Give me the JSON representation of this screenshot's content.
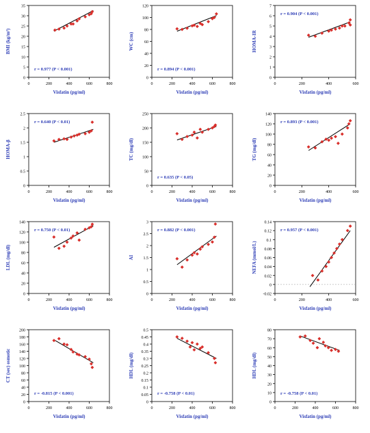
{
  "chart_data": [
    {
      "type": "scatter",
      "xlabel": "Visfatin (pg/ml)",
      "ylabel": "BMI (kg/m²)",
      "ylim": [
        0,
        35
      ],
      "yticks": [
        0,
        5,
        10,
        15,
        20,
        25,
        30,
        35
      ],
      "xlim": [
        0,
        800
      ],
      "xticks": [
        0,
        200,
        400,
        600,
        800
      ],
      "annotation": "r = 0.977 (P < 0.001)",
      "annotation_pos": "bottom-left",
      "points": [
        [
          260,
          23
        ],
        [
          300,
          23.5
        ],
        [
          350,
          24
        ],
        [
          380,
          25
        ],
        [
          420,
          26
        ],
        [
          440,
          26
        ],
        [
          480,
          27.5
        ],
        [
          500,
          28.5
        ],
        [
          560,
          29.5
        ],
        [
          600,
          30.5
        ],
        [
          620,
          31
        ],
        [
          630,
          32
        ]
      ],
      "fit": [
        [
          250,
          22.5
        ],
        [
          640,
          32.5
        ]
      ]
    },
    {
      "type": "scatter",
      "xlabel": "Visfatin (pg/ml)",
      "ylabel": "WC (cm)",
      "ylim": [
        0,
        120
      ],
      "yticks": [
        0,
        20,
        40,
        60,
        80,
        100,
        120
      ],
      "xlim": [
        0,
        800
      ],
      "xticks": [
        0,
        200,
        400,
        600,
        800
      ],
      "annotation": "r = 0.894 (P < 0.001)",
      "annotation_pos": "bottom-left",
      "points": [
        [
          250,
          81
        ],
        [
          300,
          80
        ],
        [
          350,
          82
        ],
        [
          400,
          86
        ],
        [
          420,
          87
        ],
        [
          450,
          85
        ],
        [
          480,
          90
        ],
        [
          500,
          88
        ],
        [
          560,
          93
        ],
        [
          600,
          98
        ],
        [
          620,
          100
        ],
        [
          640,
          106
        ]
      ],
      "fit": [
        [
          250,
          77
        ],
        [
          640,
          103
        ]
      ]
    },
    {
      "type": "scatter",
      "xlabel": "Visfatin (pg/ml)",
      "ylabel": "HOMA-IR",
      "ylim": [
        0,
        7
      ],
      "yticks": [
        0,
        1,
        2,
        3,
        4,
        5,
        6,
        7
      ],
      "xlim": [
        0,
        600
      ],
      "xticks": [
        0,
        200,
        400,
        600
      ],
      "annotation": "r = 0.904 (P < 0.001)",
      "annotation_pos": "top-left",
      "points": [
        [
          250,
          4.1
        ],
        [
          300,
          4.0
        ],
        [
          350,
          4.3
        ],
        [
          400,
          4.5
        ],
        [
          420,
          4.6
        ],
        [
          450,
          4.7
        ],
        [
          480,
          4.8
        ],
        [
          500,
          5.0
        ],
        [
          520,
          5.0
        ],
        [
          550,
          5.3
        ],
        [
          560,
          5.6
        ],
        [
          560,
          5.1
        ]
      ],
      "fit": [
        [
          250,
          3.9
        ],
        [
          560,
          5.4
        ]
      ]
    },
    {
      "type": "scatter",
      "xlabel": "Visfatin (pg/ml)",
      "ylabel": "HOMA-β",
      "ylim": [
        0,
        2.5
      ],
      "yticks": [
        0,
        0.5,
        1,
        1.5,
        2,
        2.5
      ],
      "xlim": [
        0,
        800
      ],
      "xticks": [
        0,
        200,
        400,
        600,
        800
      ],
      "annotation": "r = 0.640 (P < 0.01)",
      "annotation_pos": "top-left",
      "points": [
        [
          250,
          1.55
        ],
        [
          300,
          1.6
        ],
        [
          350,
          1.62
        ],
        [
          380,
          1.6
        ],
        [
          420,
          1.68
        ],
        [
          450,
          1.72
        ],
        [
          480,
          1.75
        ],
        [
          500,
          1.78
        ],
        [
          560,
          1.8
        ],
        [
          600,
          1.85
        ],
        [
          620,
          1.9
        ],
        [
          630,
          2.2
        ]
      ],
      "fit": [
        [
          250,
          1.5
        ],
        [
          640,
          1.95
        ]
      ]
    },
    {
      "type": "scatter",
      "xlabel": "Visfatin (pg/ml)",
      "ylabel": "TC (mg/dl)",
      "ylim": [
        0,
        250
      ],
      "yticks": [
        0,
        50,
        100,
        150,
        200,
        250
      ],
      "xlim": [
        0,
        800
      ],
      "xticks": [
        0,
        200,
        400,
        600,
        800
      ],
      "annotation": "r = 0.635 (P < 0.05)",
      "annotation_pos": "bottom-left",
      "points": [
        [
          250,
          180
        ],
        [
          300,
          160
        ],
        [
          350,
          170
        ],
        [
          400,
          175
        ],
        [
          420,
          185
        ],
        [
          450,
          165
        ],
        [
          480,
          195
        ],
        [
          500,
          185
        ],
        [
          560,
          195
        ],
        [
          600,
          200
        ],
        [
          620,
          205
        ],
        [
          630,
          210
        ]
      ],
      "fit": [
        [
          250,
          158
        ],
        [
          640,
          205
        ]
      ]
    },
    {
      "type": "scatter",
      "xlabel": "Visfatin (pg/ml)",
      "ylabel": "TG (mg/dl)",
      "ylim": [
        0,
        140
      ],
      "yticks": [
        0,
        20,
        40,
        60,
        80,
        100,
        120,
        140
      ],
      "xlim": [
        0,
        600
      ],
      "xticks": [
        0,
        200,
        400,
        600
      ],
      "annotation": "r = 0.893 (P < 0.001)",
      "annotation_pos": "top-left",
      "points": [
        [
          250,
          75
        ],
        [
          300,
          73
        ],
        [
          350,
          85
        ],
        [
          380,
          90
        ],
        [
          400,
          88
        ],
        [
          420,
          92
        ],
        [
          450,
          95
        ],
        [
          470,
          82
        ],
        [
          500,
          100
        ],
        [
          540,
          112
        ],
        [
          550,
          120
        ],
        [
          560,
          126
        ]
      ],
      "fit": [
        [
          250,
          68
        ],
        [
          560,
          120
        ]
      ]
    },
    {
      "type": "scatter",
      "xlabel": "Visfatin (pg/ml)",
      "ylabel": "LDL (mg/dl)",
      "ylim": [
        0,
        140
      ],
      "yticks": [
        0,
        20,
        40,
        60,
        80,
        100,
        120,
        140
      ],
      "xlim": [
        0,
        800
      ],
      "xticks": [
        0,
        200,
        400,
        600,
        800
      ],
      "annotation": "r = 0.750 (P < 0.01)",
      "annotation_pos": "top-left",
      "points": [
        [
          250,
          110
        ],
        [
          300,
          88
        ],
        [
          350,
          92
        ],
        [
          380,
          100
        ],
        [
          420,
          108
        ],
        [
          440,
          112
        ],
        [
          480,
          118
        ],
        [
          500,
          104
        ],
        [
          560,
          125
        ],
        [
          600,
          128
        ],
        [
          620,
          130
        ],
        [
          630,
          135
        ]
      ],
      "fit": [
        [
          250,
          90
        ],
        [
          640,
          132
        ]
      ]
    },
    {
      "type": "scatter",
      "xlabel": "Visfatin (pg/ml)",
      "ylabel": "AI",
      "ylim": [
        0,
        3
      ],
      "yticks": [
        0,
        0.5,
        1,
        1.5,
        2,
        2.5,
        3
      ],
      "xlim": [
        0,
        800
      ],
      "xticks": [
        0,
        200,
        400,
        600,
        800
      ],
      "annotation": "r = 0.882 (P < 0.001)",
      "annotation_pos": "top-left",
      "points": [
        [
          250,
          1.45
        ],
        [
          300,
          1.1
        ],
        [
          350,
          1.4
        ],
        [
          400,
          1.6
        ],
        [
          420,
          1.7
        ],
        [
          450,
          1.65
        ],
        [
          480,
          1.85
        ],
        [
          500,
          1.95
        ],
        [
          560,
          2.05
        ],
        [
          600,
          2.15
        ],
        [
          620,
          2.35
        ],
        [
          630,
          2.9
        ]
      ],
      "fit": [
        [
          250,
          1.2
        ],
        [
          640,
          2.4
        ]
      ]
    },
    {
      "type": "scatter",
      "xlabel": "Visfatin (pg/ml)",
      "ylabel": "NEFA (mmol/L)",
      "ylim": [
        -0.02,
        0.14
      ],
      "yticks": [
        -0.02,
        0,
        0.02,
        0.04,
        0.06,
        0.08,
        0.1,
        0.12,
        0.14
      ],
      "xlim": [
        0,
        600
      ],
      "xticks": [
        0,
        200,
        400,
        600
      ],
      "annotation": "r = 0.957 (P < 0.001)",
      "annotation_pos": "top-left",
      "points": [
        [
          280,
          0.02
        ],
        [
          320,
          0.01
        ],
        [
          350,
          0.03
        ],
        [
          380,
          0.04
        ],
        [
          400,
          0.05
        ],
        [
          420,
          0.06
        ],
        [
          440,
          0.07
        ],
        [
          460,
          0.08
        ],
        [
          480,
          0.09
        ],
        [
          500,
          0.1
        ],
        [
          540,
          0.12
        ],
        [
          560,
          0.13
        ]
      ],
      "fit": [
        [
          260,
          -0.005
        ],
        [
          560,
          0.12
        ]
      ]
    },
    {
      "type": "scatter",
      "xlabel": "Visfatin (pg/ml)",
      "ylabel": "CT (sec) osmotic",
      "ylim": [
        0,
        200
      ],
      "yticks": [
        0,
        20,
        40,
        60,
        80,
        100,
        120,
        140,
        160,
        180,
        200
      ],
      "xlim": [
        0,
        800
      ],
      "xticks": [
        0,
        200,
        400,
        600,
        800
      ],
      "annotation": "r = -0.815 (P < 0.001)",
      "annotation_pos": "bottom-left",
      "points": [
        [
          250,
          170
        ],
        [
          300,
          175
        ],
        [
          350,
          160
        ],
        [
          380,
          158
        ],
        [
          420,
          145
        ],
        [
          440,
          138
        ],
        [
          480,
          132
        ],
        [
          500,
          130
        ],
        [
          560,
          125
        ],
        [
          600,
          118
        ],
        [
          620,
          105
        ],
        [
          630,
          95
        ]
      ],
      "fit": [
        [
          250,
          172
        ],
        [
          640,
          108
        ]
      ]
    },
    {
      "type": "scatter",
      "xlabel": "Visfatin (pg/ml)",
      "ylabel": "HDL (mg/dl)",
      "ylim": [
        0,
        0.5
      ],
      "yticks": [
        0,
        0.05,
        0.1,
        0.15,
        0.2,
        0.25,
        0.3,
        0.35,
        0.4,
        0.45,
        0.5
      ],
      "xlim": [
        0,
        800
      ],
      "xticks": [
        0,
        200,
        400,
        600,
        800
      ],
      "annotation": "r = -0.758 (P < 0.01)",
      "annotation_pos": "bottom-left",
      "points": [
        [
          250,
          0.45
        ],
        [
          300,
          0.44
        ],
        [
          350,
          0.42
        ],
        [
          380,
          0.38
        ],
        [
          400,
          0.41
        ],
        [
          420,
          0.36
        ],
        [
          450,
          0.4
        ],
        [
          480,
          0.37
        ],
        [
          500,
          0.38
        ],
        [
          560,
          0.34
        ],
        [
          620,
          0.3
        ],
        [
          630,
          0.27
        ]
      ],
      "fit": [
        [
          250,
          0.44
        ],
        [
          640,
          0.3
        ]
      ]
    },
    {
      "type": "scatter",
      "xlabel": "Visfatin (pg/ml)",
      "ylabel": "HDL (mg/dl)",
      "ylim": [
        0,
        80
      ],
      "yticks": [
        0,
        10,
        20,
        30,
        40,
        50,
        60,
        70,
        80
      ],
      "xlim": [
        0,
        800
      ],
      "xticks": [
        0,
        200,
        400,
        600,
        800
      ],
      "annotation": "r = -0.758 (P < 0.01)",
      "annotation_pos": "bottom-left",
      "points": [
        [
          250,
          72
        ],
        [
          300,
          73
        ],
        [
          350,
          68
        ],
        [
          380,
          65
        ],
        [
          420,
          60
        ],
        [
          440,
          70
        ],
        [
          480,
          66
        ],
        [
          500,
          62
        ],
        [
          530,
          60
        ],
        [
          560,
          57
        ],
        [
          600,
          58
        ],
        [
          630,
          56
        ]
      ],
      "fit": [
        [
          250,
          73
        ],
        [
          640,
          57
        ]
      ]
    }
  ]
}
